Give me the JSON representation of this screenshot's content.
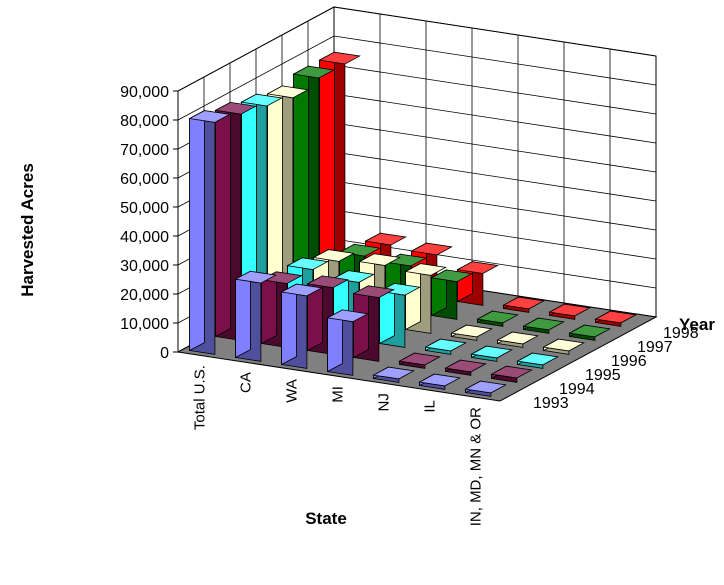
{
  "chart_data": {
    "type": "bar",
    "subtype": "3d-column",
    "ylabel": "Harvested Acres",
    "xlabel": "State",
    "zlabel": "Year",
    "ylim": [
      0,
      90000
    ],
    "y_ticks": [
      "0",
      "10,000",
      "20,000",
      "30,000",
      "40,000",
      "50,000",
      "60,000",
      "70,000",
      "80,000",
      "90,000"
    ],
    "grid": true,
    "categories": [
      "Total U.S.",
      "CA",
      "WA",
      "MI",
      "NJ",
      "IL",
      "IN, MD, MN & OR"
    ],
    "series": [
      {
        "name": "1993",
        "color": "#7f7fff",
        "values": [
          80000,
          27000,
          25000,
          18500,
          0,
          0,
          0
        ]
      },
      {
        "name": "1994",
        "color": "#7a0f4a",
        "values": [
          78000,
          22000,
          23000,
          22000,
          0,
          0,
          1500
        ]
      },
      {
        "name": "1995",
        "color": "#33ffff",
        "values": [
          76000,
          22000,
          20000,
          18000,
          0,
          0,
          0
        ]
      },
      {
        "name": "1996",
        "color": "#fffecc",
        "values": [
          74000,
          20000,
          21000,
          20000,
          0,
          0,
          0
        ]
      },
      {
        "name": "1997",
        "color": "#007a00",
        "values": [
          76000,
          17000,
          16000,
          13000,
          0,
          0,
          0
        ]
      },
      {
        "name": "1998",
        "color": "#ff0000",
        "values": [
          76000,
          16000,
          15000,
          11000,
          0,
          0,
          0
        ]
      }
    ]
  }
}
